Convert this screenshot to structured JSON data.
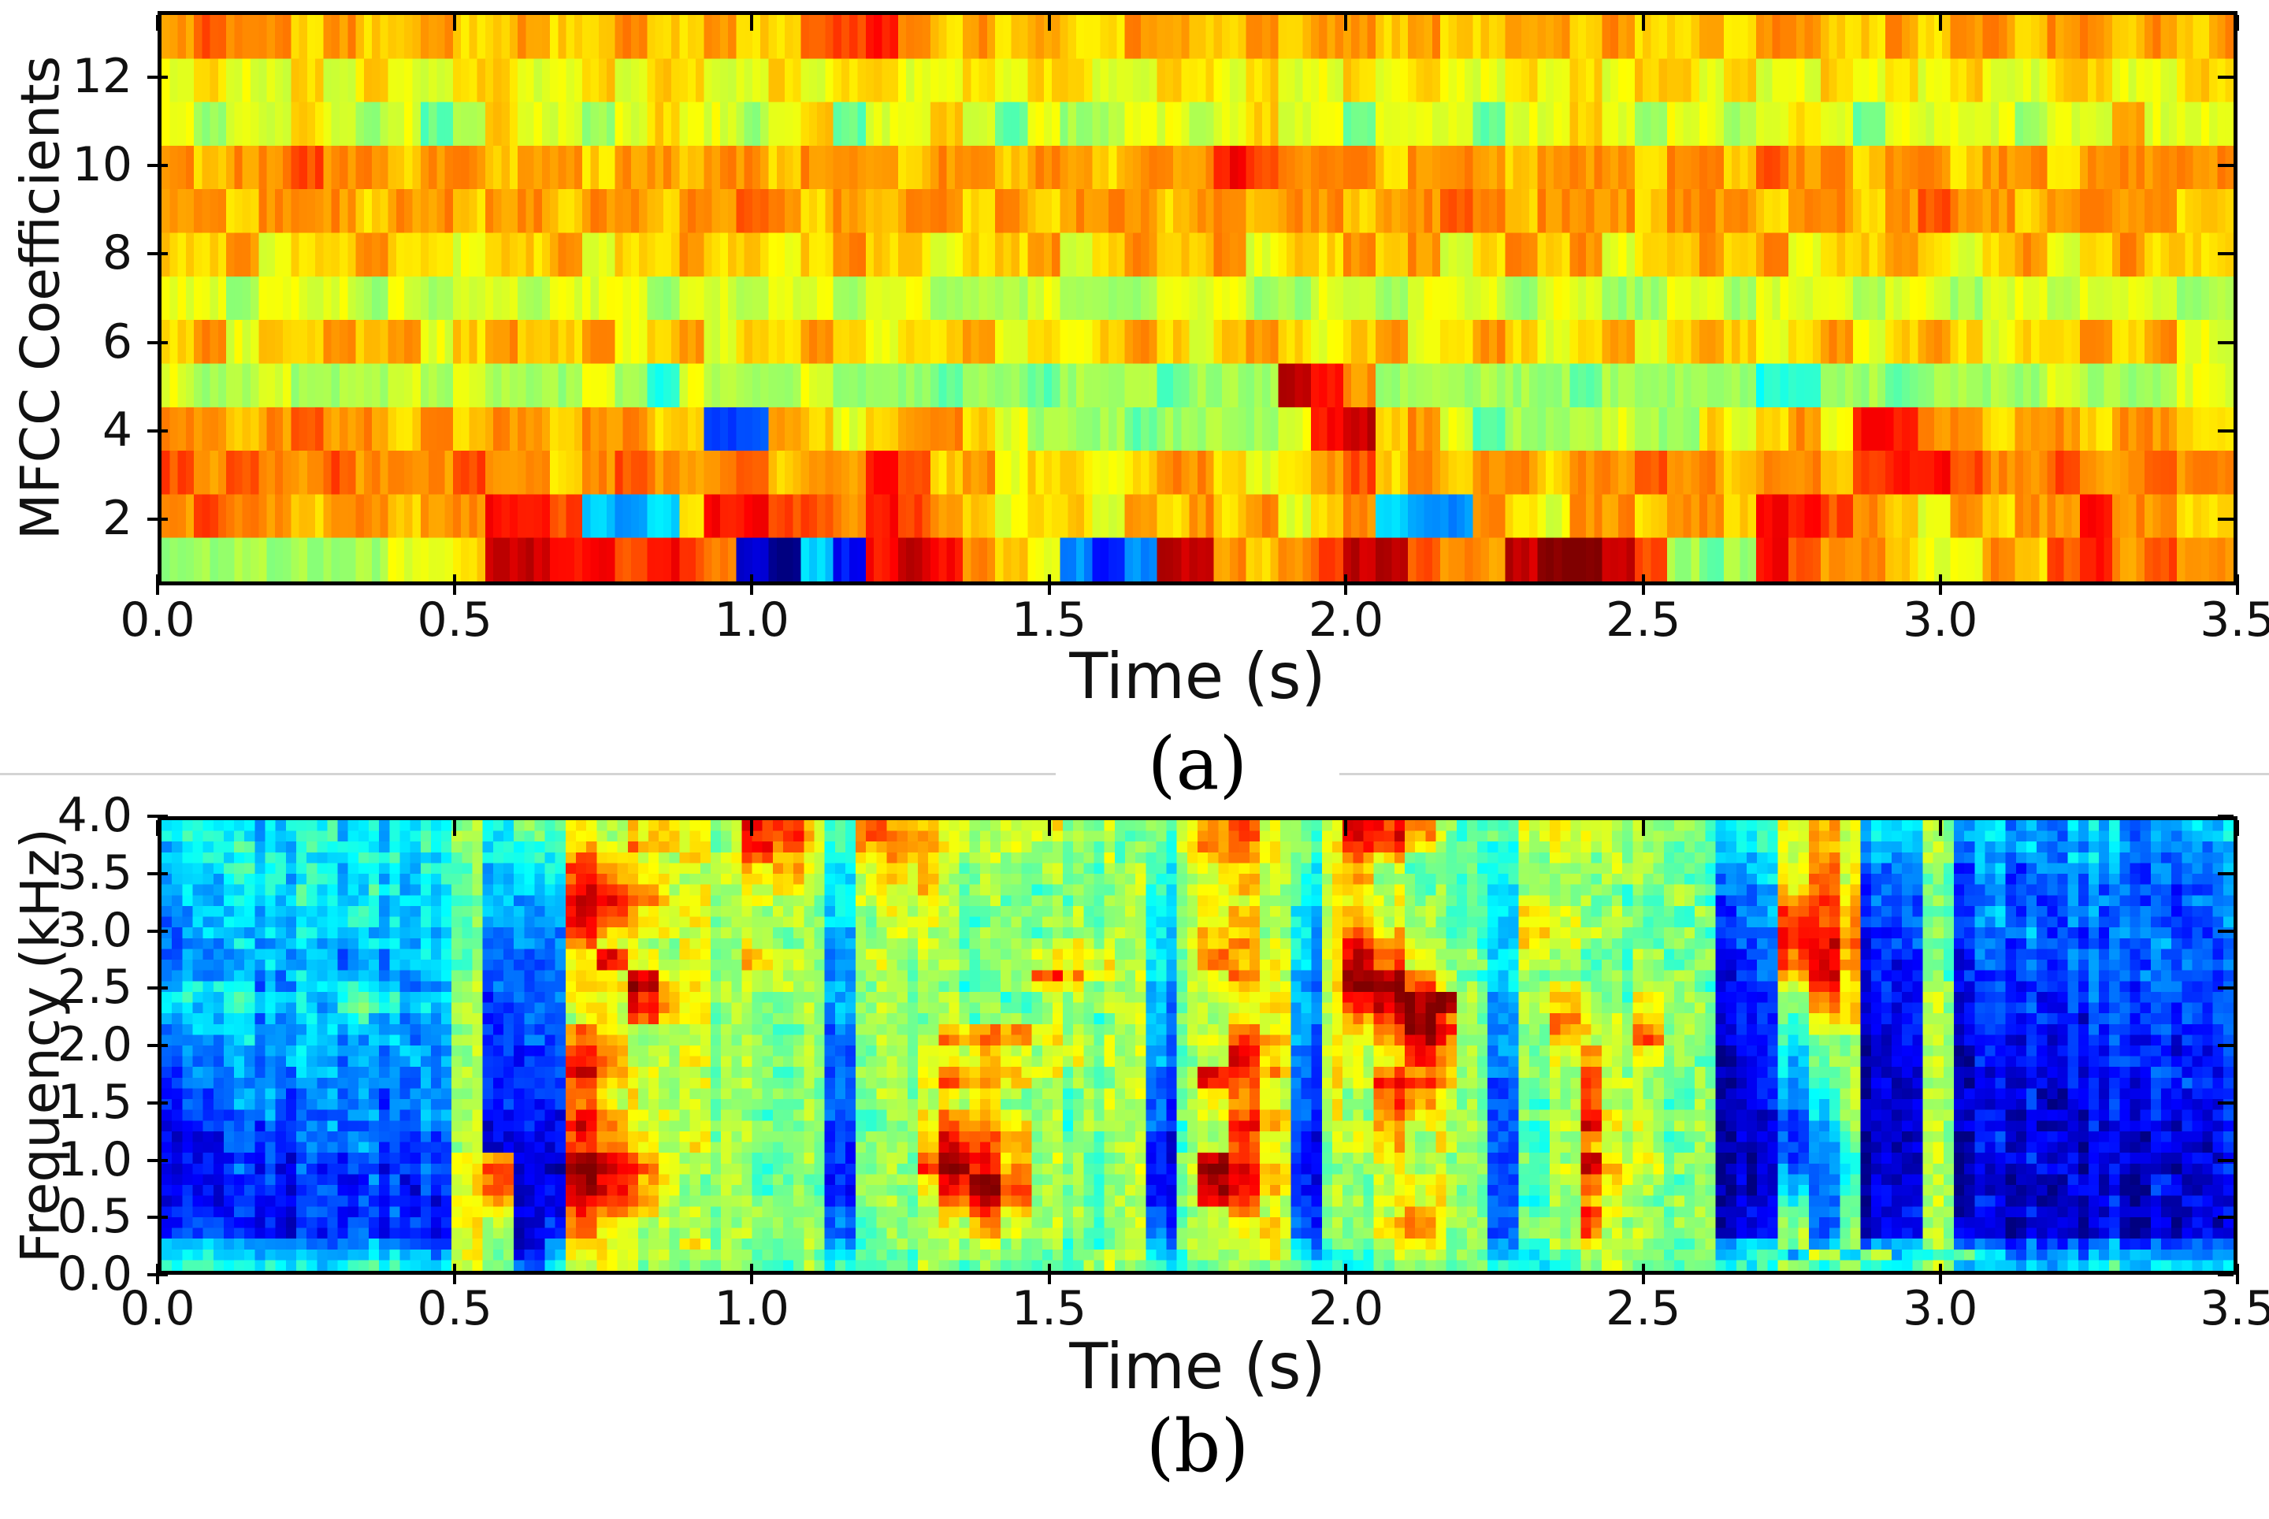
{
  "figure": {
    "background": "#ffffff",
    "divider_color": "#d4d4d4",
    "captions": [
      "(a)",
      "(b)"
    ]
  },
  "chart_data": [
    {
      "type": "heatmap",
      "panel": "a",
      "title": "",
      "xlabel": "Time (s)",
      "ylabel": "MFCC Coefficients",
      "xlim": [
        0.0,
        3.5
      ],
      "ylim": [
        1,
        13
      ],
      "grid": false,
      "legend": "none",
      "colormap": "jet",
      "value_encoding": "each character is a hex digit 0-f mapped to jet colormap 0..1; rows listed top (coefficient 13) to bottom (coefficient 1); columns span 0 to 3.5 s",
      "x_ticks": [
        {
          "label": "0.0",
          "f": 0.0
        },
        {
          "label": "0.5",
          "f": 0.1429
        },
        {
          "label": "1.0",
          "f": 0.2857
        },
        {
          "label": "1.5",
          "f": 0.4286
        },
        {
          "label": "2.0",
          "f": 0.5714
        },
        {
          "label": "2.5",
          "f": 0.7143
        },
        {
          "label": "3.0",
          "f": 0.8571
        },
        {
          "label": "3.5",
          "f": 1.0
        }
      ],
      "y_ticks": [
        {
          "label": "2",
          "f": 0.1154
        },
        {
          "label": "4",
          "f": 0.2692
        },
        {
          "label": "6",
          "f": 0.4231
        },
        {
          "label": "8",
          "f": 0.5769
        },
        {
          "label": "10",
          "f": 0.7308
        },
        {
          "label": "12",
          "f": 0.8846
        }
      ],
      "rows": [
        "bcbbabaabaabaabaabaaccdbababaabbaababbabaabbabaababbaababbabbabab",
        "9a99a9a99aa99a9aa99a9aa99a9aa99aa9a99a9a99a9a9aa9a99a9a9a99aa99a",
        "9899a98978a9989a9989a799a979889989a997999799a989989a979999899b99",
        "babbcbbabbabbabbabbabbbabbabbabbbdcbbbabbbabbbabbacbbabbabbabbbb",
        "bbabbbabbabbabbabbcbababbababbbabbabbabbcbabbbabbbabbabcbbabbbba",
        "aab9aabaa9aab9aabaa9abaa9aab9abaab9aabab9abab9aabab9aaba9ab9abaa",
        "9989998989989998998998998889888999889989998998899899989989989998",
        "ab9aabab9abaab9ab9aaba9aab9a9aba9aba9ab9aba9ab9aba9ab9aba9aabab9",
        "98898889898889869888988878878887888edb88888878888866887888898889",
        "bbabcbbababbabbaa33ba9abba9888788889deab97888988a9ab9ddbbabbabba",
        "cbcbbcbbbcbbabcbbbcabbdcab9aa9abba9abcababbabbcbbabbacddcbbcbbcb",
        "bcbbabbabbddc545addccbdcba9aa9babab9ab544ba9bbabbaddcba9babbdbba",
        "888888899aeeddcdcb1052dedba9424eebabceecbbeffec878dcbba99bacdbcb"
      ]
    },
    {
      "type": "heatmap",
      "panel": "b",
      "title": "",
      "xlabel": "Time (s)",
      "ylabel": "Frequency (kHz)",
      "xlim": [
        0.0,
        3.5
      ],
      "ylim": [
        0.0,
        4.0
      ],
      "grid": false,
      "legend": "none",
      "colormap": "jet",
      "value_encoding": "each character is a hex digit 0-f mapped to jet colormap 0..1; rows listed top (4.0 kHz) to bottom (0 kHz); columns span 0 to 3.5 s",
      "x_ticks": [
        {
          "label": "0.0",
          "f": 0.0
        },
        {
          "label": "0.5",
          "f": 0.1429
        },
        {
          "label": "1.0",
          "f": 0.2857
        },
        {
          "label": "1.5",
          "f": 0.4286
        },
        {
          "label": "2.0",
          "f": 0.5714
        },
        {
          "label": "2.5",
          "f": 0.7143
        },
        {
          "label": "3.0",
          "f": 0.8571
        },
        {
          "label": "3.5",
          "f": 1.0
        }
      ],
      "y_ticks": [
        {
          "label": "0.0",
          "f": 0.0
        },
        {
          "label": "0.5",
          "f": 0.125
        },
        {
          "label": "1.0",
          "f": 0.25
        },
        {
          "label": "1.5",
          "f": 0.375
        },
        {
          "label": "2.0",
          "f": 0.5
        },
        {
          "label": "2.5",
          "f": 0.625
        },
        {
          "label": "3.0",
          "f": 0.75
        },
        {
          "label": "3.5",
          "f": 0.875
        },
        {
          "label": "4.0",
          "f": 1.0
        }
      ],
      "rows": [
        "6655665566857798aa98dda6cba989988779bc979edb8779998887669a95585544554455",
        "5665566556856 7a9ba98dca6bba98988777 9bb979dca8768998877569a94584454454444",
        "565655665575 66ba98a9cb96aba89887876 9ab979ca87768988878559b94484444544344",
        "55665655567456cba989ab959aa888877 8689a969b877768888877459b93473434443444",
        "55566556557455dcb9989a8599a88878786 89a869a97875888778844aba3473334434334",
        "55556655657445edca989985999887878858998 69a987759887787 34bca3373333443343",
        "45555565557445dca998898589987888785 89a859b98775a98877834ccb3373433434334",
        "45455554557344ca99888884898888788859aa859ca8775b99778733dcb2373343334333",
        "44545455457344b988989884889788898859ab959db9875a98778733ddc2373334333433",
        "444545445573349d9898a98498887 89a9858ba959ec98859877878 23cdb2272333433343",
        "4444545445833499e9989984888878cb98589b949feb9758878887 23bda2273233334333",
        "565445654483349aeb988984888778998 8489a949ffc98589878872 39ca2282323333433",
        "65655476558234 99db98888488788788884889a49deff849a979882 28ba2282232333333",
        "5554456444823489ca98888488787888784 8899 49bdfc849b98a882279a2282223233233",
        "45544554448233b98888878388 8abb987848 8b949acfd848ba8b87 2268912 82222323323",
        "44544545448233ba888888838 88bcb9888489cb499bec848a98c872 26781282222232233",
        "44445444548223cb88988883888 9a98988478da399adb8489b89871 25781281222223223",
        "34444544448223db98888783889bba987838dcb399cba8488c88781 25681182122222322",
        "34344444348223ca98988883889cba887838dc939 9dcb8388d987812468 1181212222232",
        "33443443448223b998888883888 9a88788389b93 98cb98378c88781 24581182121222222",
        "23343344348122cb998878837 89ba98788389cb398ba983 88d98881 13581181212122222",
        "23333433348122db98888882789cba8788378da389b98837 9e998811 34811 82121212122",
        "22333343338112cba8988882 88adcb8878278c92 89a89837 8b887811 34711 81212121212",
        "22232333339a12edb98878 8288beda887828ec9278a98838 8e998811 33611 81121212121",
        "22323232339c11fec98878728 8cfdb887828fda2789888379ea98811 43611 81112121112",
        "22232323239b12edb97878728 89dfc887828eda28899983 78c987811 53611 81111211211",
        "22223232329a12dcb87888 82888cec887828dc92 88a99836 8b878811 63711 81211121121",
        "32222323229912cba88888 83888aca8878378b93789b98378d987812 73712 81121112112",
        "33222232329813b9888888837 889b988783889a38 8ab883 88c888812 83812 82112121121",
        "55444344439714a98898788 4788898877848899478 9a88478a887845848458 4333343333",
        "66555455549725998888787577888877885788 95678988567 98878565 8585685444454444",
        "77666566659736898878778677878777876 77886668878 66688778668 686685555565555"
      ]
    }
  ]
}
